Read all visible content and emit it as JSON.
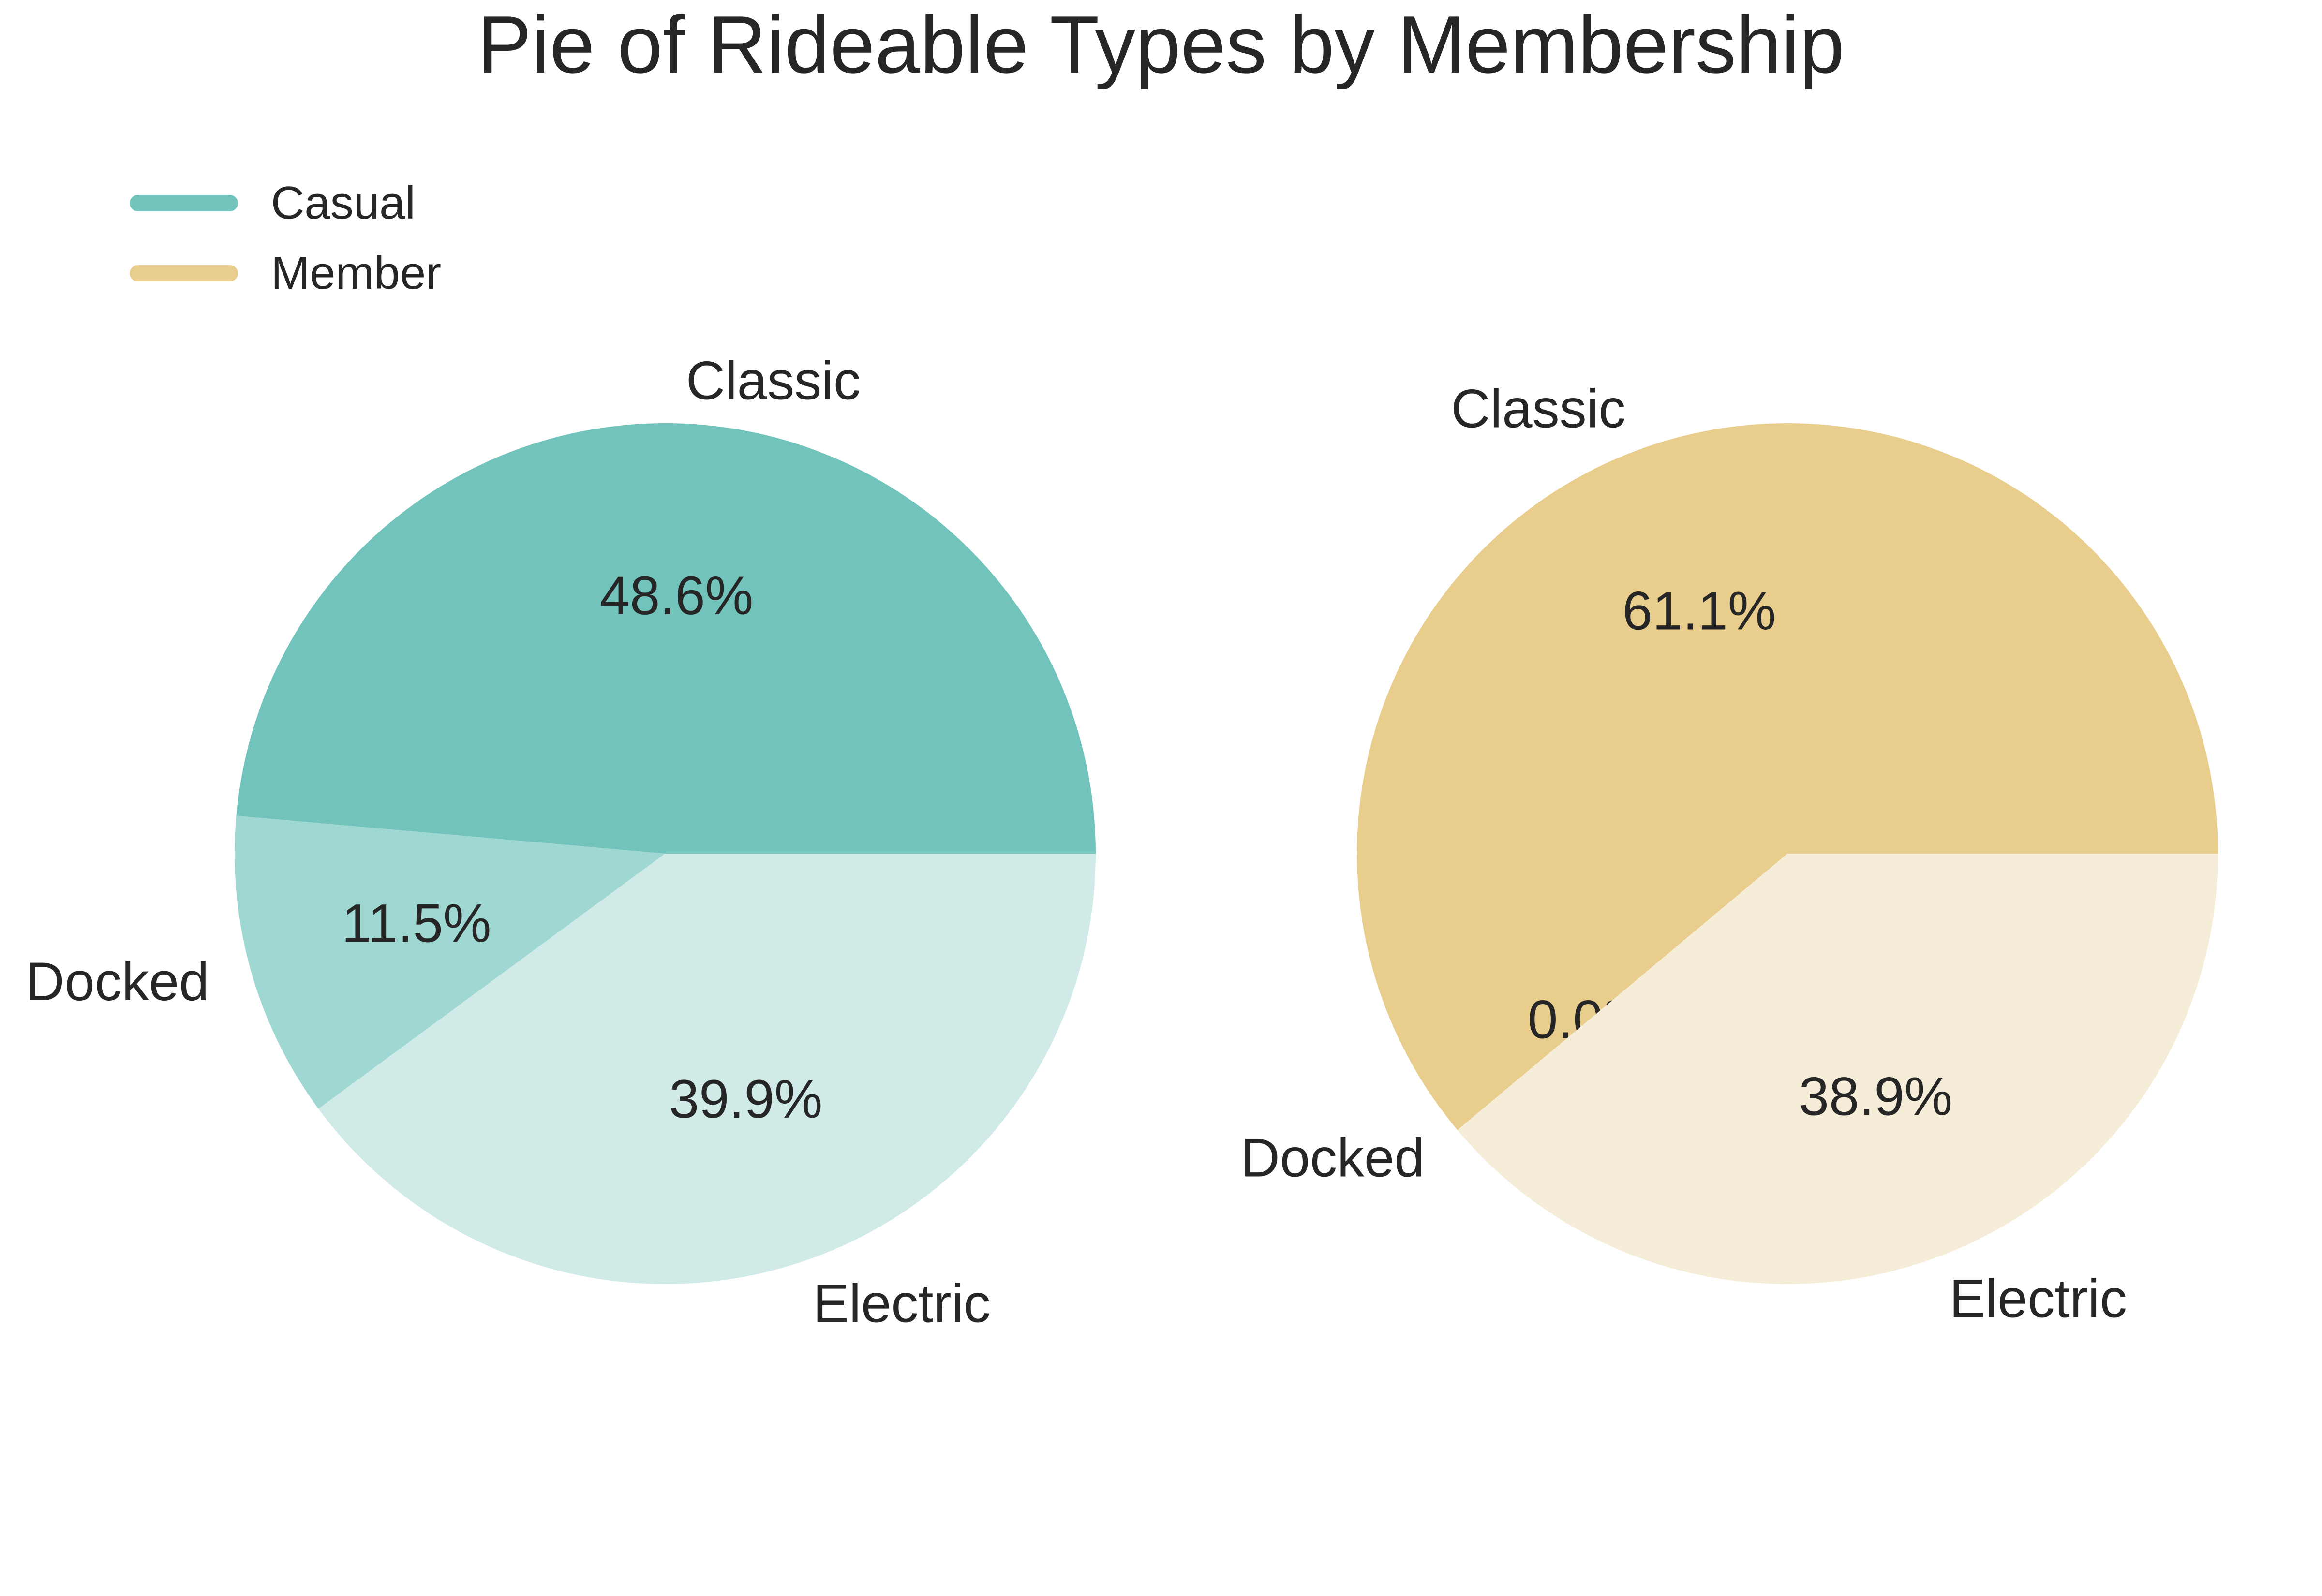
{
  "title": "Pie of Rideable Types by Membership",
  "legend": [
    {
      "label": "Casual",
      "color": "#72c3bb"
    },
    {
      "label": "Member",
      "color": "#e8cd8d"
    }
  ],
  "chart_data": [
    {
      "type": "pie",
      "legend_entry": "Casual",
      "categories": [
        "Classic",
        "Docked",
        "Electric"
      ],
      "values": [
        48.6,
        11.5,
        39.9
      ],
      "value_labels": [
        "48.6%",
        "11.5%",
        "39.9%"
      ],
      "colors": [
        "#72c3bb",
        "#9fd8d2",
        "#d0ebe7"
      ],
      "start_angle_deg": 0,
      "direction": "counterclockwise"
    },
    {
      "type": "pie",
      "legend_entry": "Member",
      "categories": [
        "Classic",
        "Docked",
        "Electric"
      ],
      "values": [
        61.1,
        0.0,
        38.9
      ],
      "value_labels": [
        "61.1%",
        "0.0%",
        "38.9%"
      ],
      "colors": [
        "#e8cd8d",
        "#f0dfb8",
        "#f6edd9"
      ],
      "start_angle_deg": 0,
      "direction": "counterclockwise"
    }
  ]
}
